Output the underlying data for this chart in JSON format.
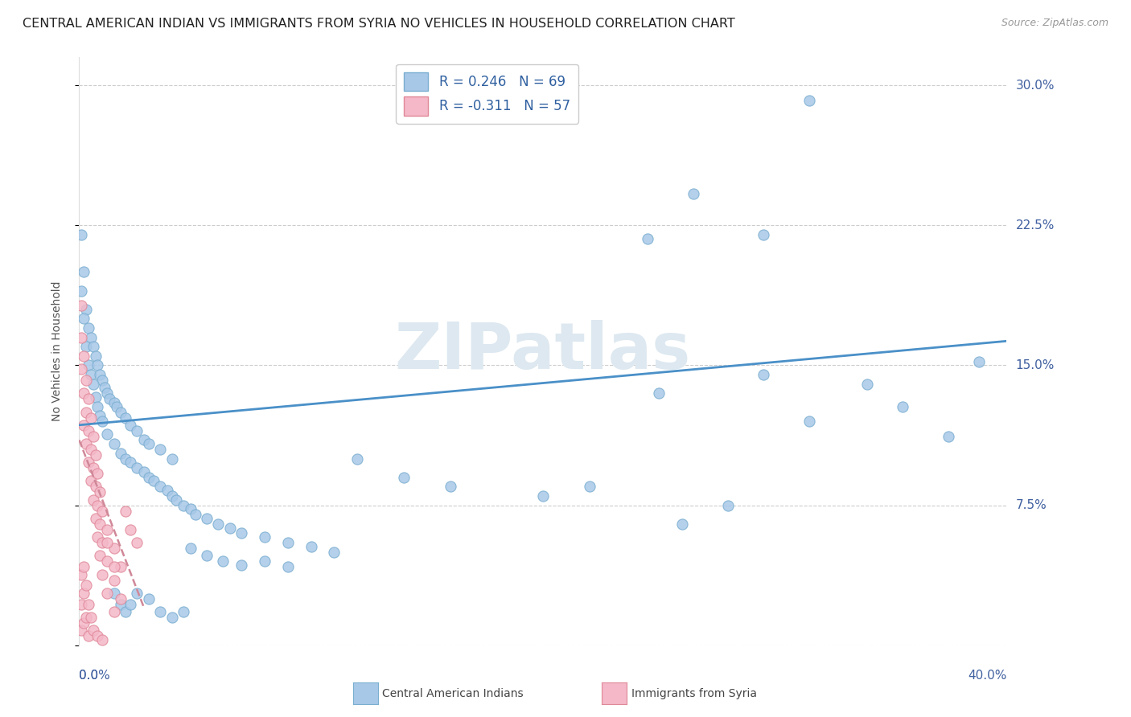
{
  "title": "CENTRAL AMERICAN INDIAN VS IMMIGRANTS FROM SYRIA NO VEHICLES IN HOUSEHOLD CORRELATION CHART",
  "source": "Source: ZipAtlas.com",
  "ylabel": "No Vehicles in Household",
  "ytick_vals": [
    0.0,
    0.075,
    0.15,
    0.225,
    0.3
  ],
  "ytick_labels": [
    "",
    "7.5%",
    "15.0%",
    "22.5%",
    "30.0%"
  ],
  "xlim": [
    0.0,
    0.4
  ],
  "ylim": [
    0.0,
    0.315
  ],
  "blue_color": "#a8c8e8",
  "blue_edge": "#7aaed0",
  "pink_color": "#f4b8c8",
  "pink_edge": "#e08898",
  "blue_line_color": "#4a90c8",
  "pink_line_color": "#d08898",
  "legend_text_color": "#3060a0",
  "tick_color": "#4060a0",
  "watermark": "ZIPatlas",
  "watermark_color": "#dde8f0",
  "background_color": "#ffffff",
  "grid_color": "#cccccc",
  "blue_line_x": [
    0.0,
    0.4
  ],
  "blue_line_y": [
    0.118,
    0.163
  ],
  "pink_line_x": [
    0.0,
    0.028
  ],
  "pink_line_y": [
    0.11,
    0.02
  ],
  "blue_scatter": [
    [
      0.001,
      0.22
    ],
    [
      0.002,
      0.2
    ],
    [
      0.001,
      0.19
    ],
    [
      0.003,
      0.18
    ],
    [
      0.002,
      0.175
    ],
    [
      0.004,
      0.17
    ],
    [
      0.005,
      0.165
    ],
    [
      0.003,
      0.16
    ],
    [
      0.006,
      0.16
    ],
    [
      0.007,
      0.155
    ],
    [
      0.004,
      0.15
    ],
    [
      0.008,
      0.15
    ],
    [
      0.005,
      0.145
    ],
    [
      0.009,
      0.145
    ],
    [
      0.01,
      0.142
    ],
    [
      0.006,
      0.14
    ],
    [
      0.011,
      0.138
    ],
    [
      0.012,
      0.135
    ],
    [
      0.007,
      0.133
    ],
    [
      0.013,
      0.132
    ],
    [
      0.015,
      0.13
    ],
    [
      0.008,
      0.128
    ],
    [
      0.016,
      0.128
    ],
    [
      0.018,
      0.125
    ],
    [
      0.009,
      0.123
    ],
    [
      0.02,
      0.122
    ],
    [
      0.01,
      0.12
    ],
    [
      0.022,
      0.118
    ],
    [
      0.025,
      0.115
    ],
    [
      0.012,
      0.113
    ],
    [
      0.028,
      0.11
    ],
    [
      0.015,
      0.108
    ],
    [
      0.03,
      0.108
    ],
    [
      0.035,
      0.105
    ],
    [
      0.018,
      0.103
    ],
    [
      0.02,
      0.1
    ],
    [
      0.04,
      0.1
    ],
    [
      0.022,
      0.098
    ],
    [
      0.025,
      0.095
    ],
    [
      0.028,
      0.093
    ],
    [
      0.03,
      0.09
    ],
    [
      0.032,
      0.088
    ],
    [
      0.035,
      0.085
    ],
    [
      0.038,
      0.083
    ],
    [
      0.04,
      0.08
    ],
    [
      0.042,
      0.078
    ],
    [
      0.045,
      0.075
    ],
    [
      0.048,
      0.073
    ],
    [
      0.05,
      0.07
    ],
    [
      0.055,
      0.068
    ],
    [
      0.06,
      0.065
    ],
    [
      0.065,
      0.063
    ],
    [
      0.07,
      0.06
    ],
    [
      0.08,
      0.058
    ],
    [
      0.09,
      0.055
    ],
    [
      0.1,
      0.053
    ],
    [
      0.11,
      0.05
    ],
    [
      0.12,
      0.1
    ],
    [
      0.14,
      0.09
    ],
    [
      0.16,
      0.085
    ],
    [
      0.2,
      0.08
    ],
    [
      0.22,
      0.085
    ],
    [
      0.25,
      0.135
    ],
    [
      0.26,
      0.065
    ],
    [
      0.28,
      0.075
    ],
    [
      0.295,
      0.145
    ],
    [
      0.315,
      0.12
    ],
    [
      0.34,
      0.14
    ],
    [
      0.355,
      0.128
    ],
    [
      0.375,
      0.112
    ],
    [
      0.388,
      0.152
    ],
    [
      0.245,
      0.218
    ],
    [
      0.295,
      0.22
    ],
    [
      0.315,
      0.292
    ],
    [
      0.265,
      0.242
    ],
    [
      0.015,
      0.028
    ],
    [
      0.018,
      0.022
    ],
    [
      0.02,
      0.018
    ],
    [
      0.022,
      0.022
    ],
    [
      0.025,
      0.028
    ],
    [
      0.03,
      0.025
    ],
    [
      0.035,
      0.018
    ],
    [
      0.04,
      0.015
    ],
    [
      0.045,
      0.018
    ],
    [
      0.048,
      0.052
    ],
    [
      0.055,
      0.048
    ],
    [
      0.062,
      0.045
    ],
    [
      0.07,
      0.043
    ],
    [
      0.08,
      0.045
    ],
    [
      0.09,
      0.042
    ]
  ],
  "pink_scatter": [
    [
      0.001,
      0.182
    ],
    [
      0.001,
      0.165
    ],
    [
      0.001,
      0.148
    ],
    [
      0.002,
      0.155
    ],
    [
      0.002,
      0.135
    ],
    [
      0.002,
      0.118
    ],
    [
      0.003,
      0.142
    ],
    [
      0.003,
      0.125
    ],
    [
      0.003,
      0.108
    ],
    [
      0.004,
      0.132
    ],
    [
      0.004,
      0.115
    ],
    [
      0.004,
      0.098
    ],
    [
      0.005,
      0.122
    ],
    [
      0.005,
      0.105
    ],
    [
      0.005,
      0.088
    ],
    [
      0.006,
      0.112
    ],
    [
      0.006,
      0.095
    ],
    [
      0.006,
      0.078
    ],
    [
      0.007,
      0.102
    ],
    [
      0.007,
      0.085
    ],
    [
      0.007,
      0.068
    ],
    [
      0.008,
      0.092
    ],
    [
      0.008,
      0.075
    ],
    [
      0.008,
      0.058
    ],
    [
      0.009,
      0.082
    ],
    [
      0.009,
      0.065
    ],
    [
      0.009,
      0.048
    ],
    [
      0.01,
      0.072
    ],
    [
      0.01,
      0.055
    ],
    [
      0.01,
      0.038
    ],
    [
      0.012,
      0.062
    ],
    [
      0.012,
      0.045
    ],
    [
      0.012,
      0.028
    ],
    [
      0.015,
      0.052
    ],
    [
      0.015,
      0.035
    ],
    [
      0.015,
      0.018
    ],
    [
      0.018,
      0.042
    ],
    [
      0.018,
      0.025
    ],
    [
      0.02,
      0.072
    ],
    [
      0.022,
      0.062
    ],
    [
      0.025,
      0.055
    ],
    [
      0.001,
      0.038
    ],
    [
      0.001,
      0.022
    ],
    [
      0.001,
      0.008
    ],
    [
      0.002,
      0.042
    ],
    [
      0.002,
      0.028
    ],
    [
      0.002,
      0.012
    ],
    [
      0.003,
      0.032
    ],
    [
      0.003,
      0.015
    ],
    [
      0.004,
      0.022
    ],
    [
      0.004,
      0.005
    ],
    [
      0.005,
      0.015
    ],
    [
      0.006,
      0.008
    ],
    [
      0.008,
      0.005
    ],
    [
      0.01,
      0.003
    ],
    [
      0.012,
      0.055
    ],
    [
      0.015,
      0.042
    ]
  ],
  "title_fontsize": 11.5,
  "axis_label_fontsize": 10,
  "tick_fontsize": 11,
  "legend_fontsize": 12
}
